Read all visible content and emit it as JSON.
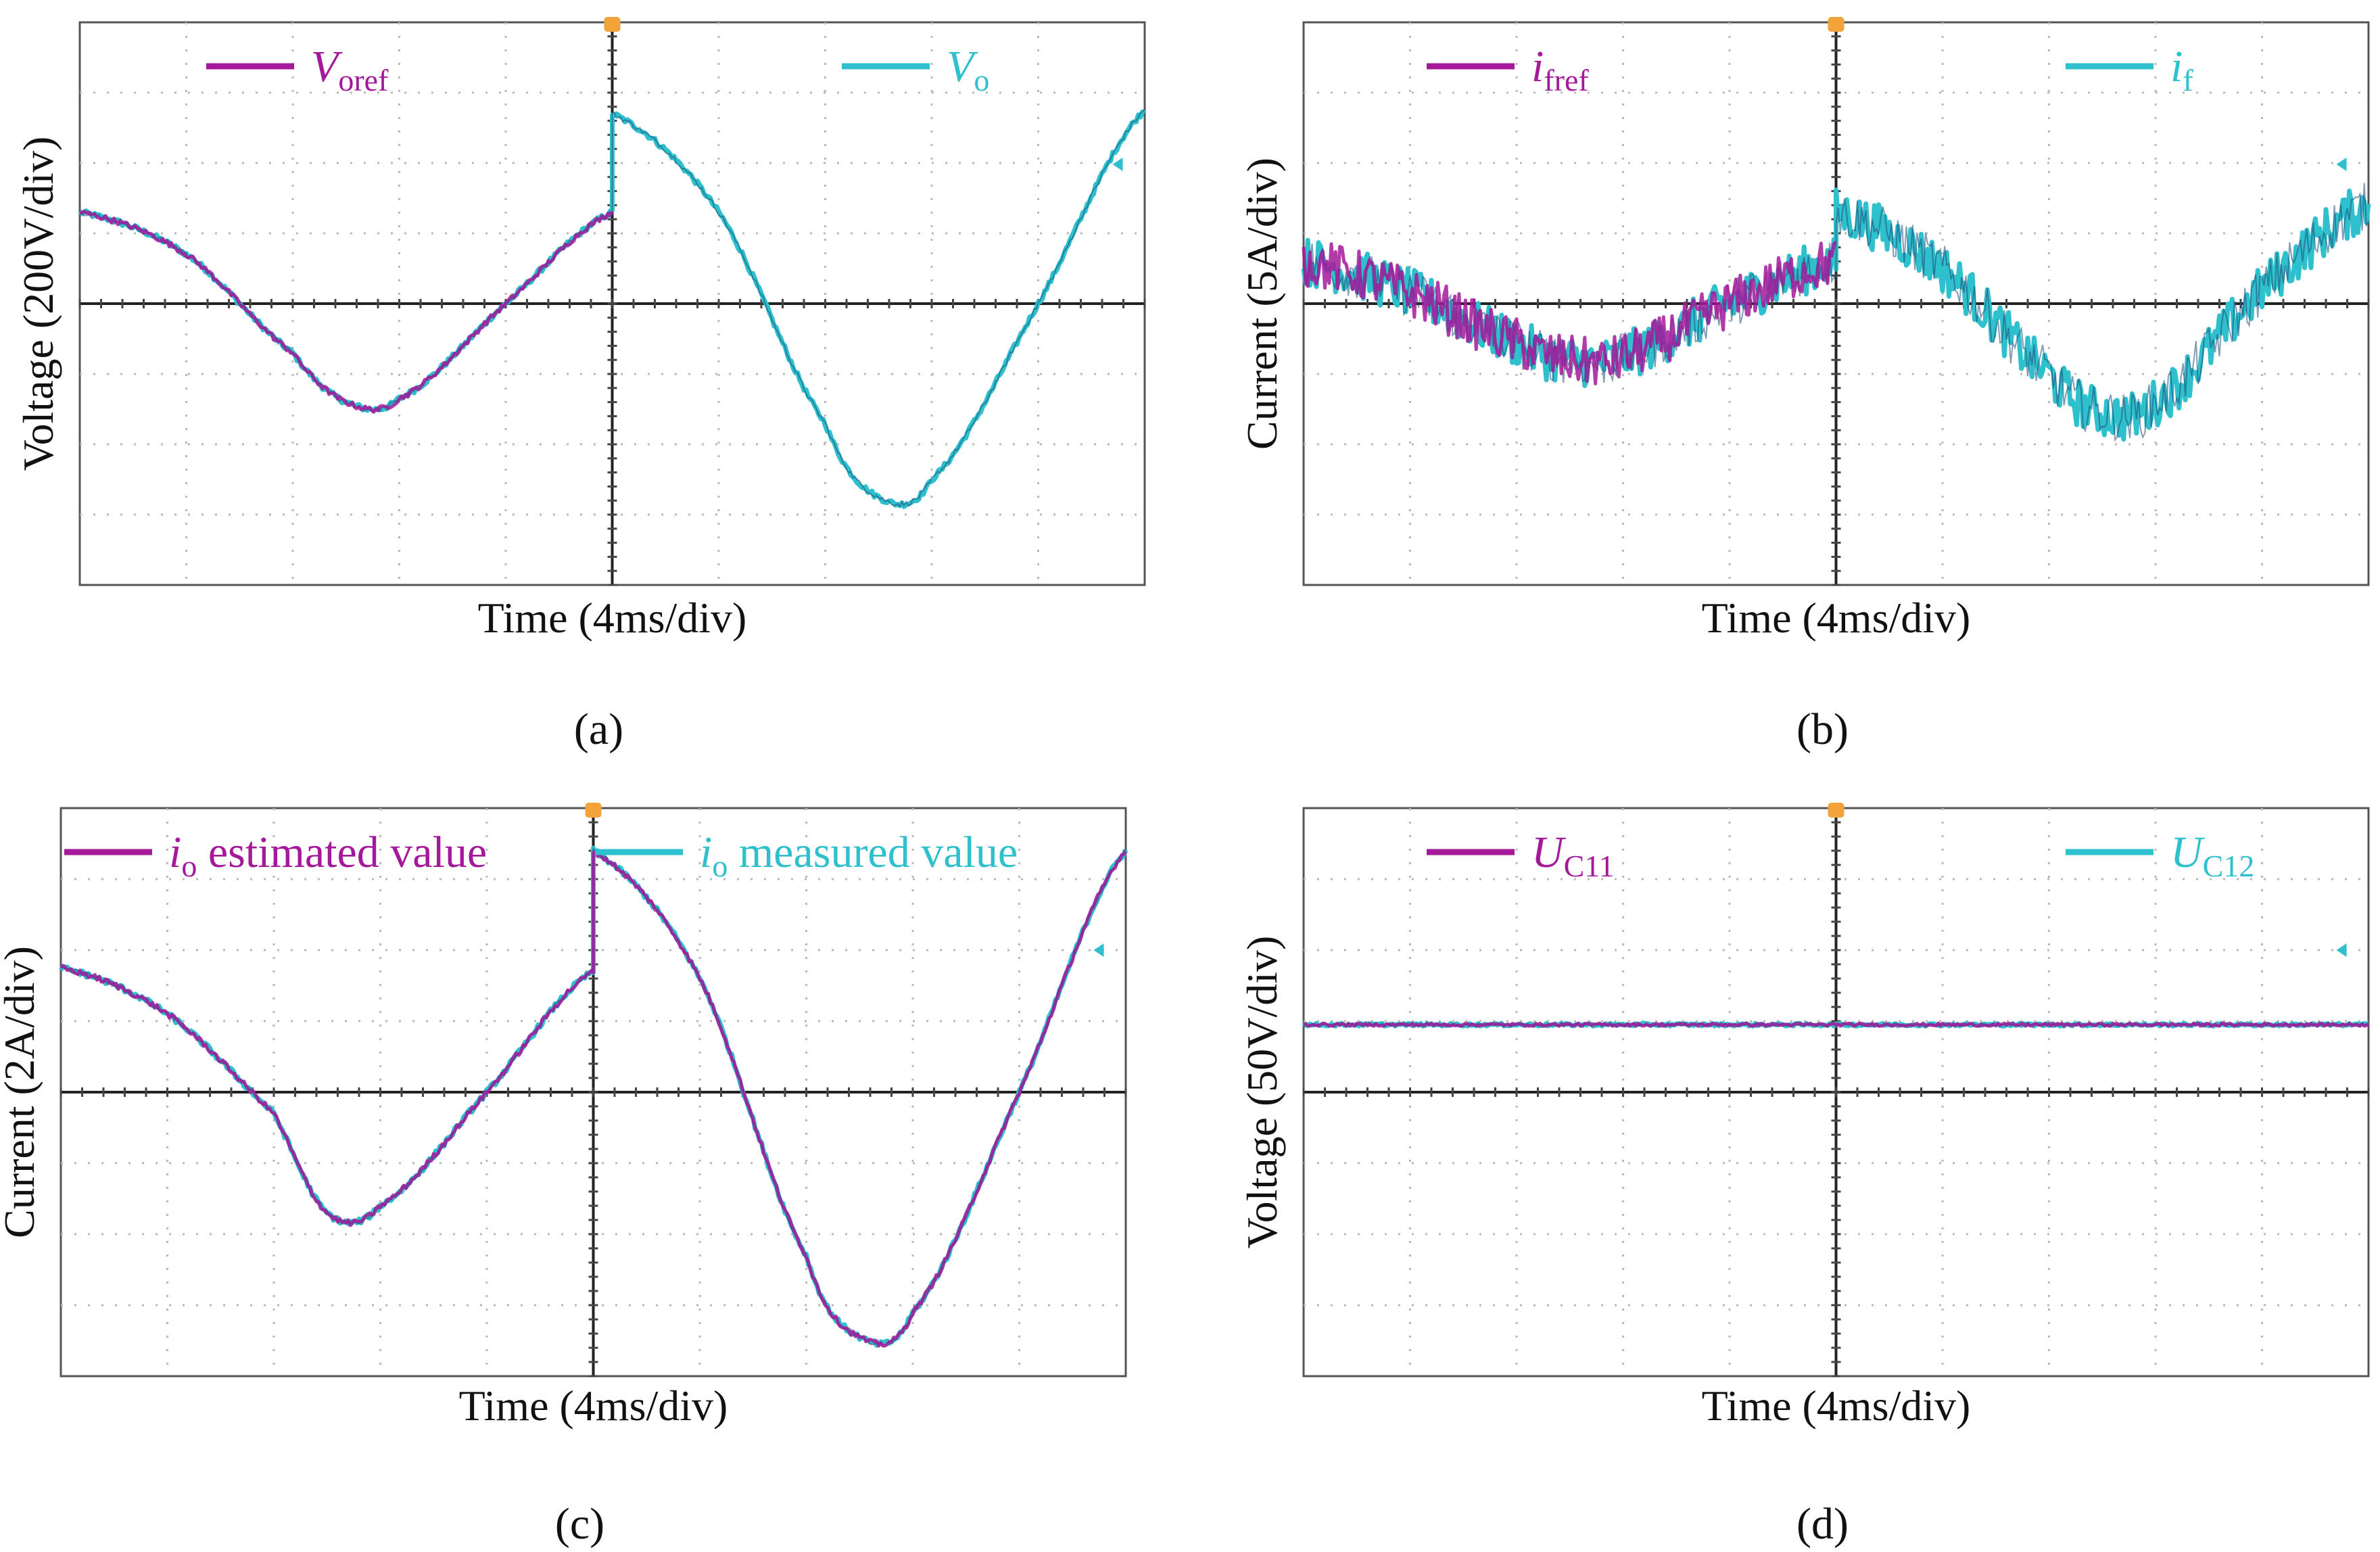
{
  "colors": {
    "reference": "#A3199A",
    "measured": "#2EC0CD",
    "dark_trace": "#1F4A78",
    "trigger": "#F2A33A"
  },
  "chart_data": [
    {
      "id": "a",
      "type": "line",
      "caption": "(a)",
      "xlabel": "Time (4ms/div)",
      "ylabel": "Voltage (200V/div)",
      "x_unit": "div",
      "y_unit": "div",
      "xlim": [
        0,
        10
      ],
      "ylim": [
        -4,
        4
      ],
      "trigger_x": 5,
      "noise": 0.04,
      "series": [
        {
          "name": "V",
          "name_sub": "oref",
          "color": "reference",
          "x": [
            0,
            1,
            2,
            2.5,
            3,
            4,
            5
          ],
          "y": [
            1.3,
            0.7,
            -0.7,
            -1.4,
            -1.35,
            0,
            1.3
          ]
        },
        {
          "name": "V",
          "name_sub": "o",
          "color": "measured",
          "x": [
            0,
            1,
            2,
            2.5,
            3,
            4,
            5,
            5,
            6,
            7,
            7.5,
            8,
            9,
            10
          ],
          "y": [
            1.3,
            0.7,
            -0.7,
            -1.4,
            -1.35,
            0,
            1.3,
            2.7,
            1.3,
            -1.7,
            -2.75,
            -2.5,
            0,
            2.75
          ]
        }
      ]
    },
    {
      "id": "b",
      "type": "line",
      "caption": "(b)",
      "xlabel": "Time (4ms/div)",
      "ylabel": "Current (5A/div)",
      "x_unit": "div",
      "y_unit": "div",
      "xlim": [
        0,
        10
      ],
      "ylim": [
        -4,
        4
      ],
      "trigger_x": 5,
      "noise": 0.35,
      "series": [
        {
          "name": "i",
          "name_sub": "fref",
          "color": "reference",
          "x": [
            0,
            1,
            2,
            2.5,
            3,
            4,
            5
          ],
          "y": [
            0.6,
            0.15,
            -0.55,
            -0.8,
            -0.75,
            0,
            0.6
          ]
        },
        {
          "name": "i",
          "name_sub": "f",
          "color": "measured",
          "x": [
            0,
            1,
            2,
            2.5,
            3,
            4,
            5,
            5,
            6,
            7,
            7.5,
            8,
            9,
            10
          ],
          "y": [
            0.6,
            0.15,
            -0.55,
            -0.8,
            -0.75,
            0,
            0.6,
            1.3,
            0.5,
            -1.0,
            -1.55,
            -1.4,
            0.2,
            1.4
          ]
        }
      ]
    },
    {
      "id": "c",
      "type": "line",
      "caption": "(c)",
      "xlabel": "Time (4ms/div)",
      "ylabel": "Current (2A/div)",
      "x_unit": "div",
      "y_unit": "div",
      "xlim": [
        0,
        10
      ],
      "ylim": [
        -4,
        4
      ],
      "trigger_x": 5,
      "noise": 0.04,
      "series": [
        {
          "name": "i",
          "name_sub": "o",
          "name_suffix": " estimated value",
          "color": "reference",
          "x": [
            0,
            1,
            2,
            2.5,
            3,
            4,
            5,
            5,
            6,
            7,
            7.5,
            8,
            9,
            10
          ],
          "y": [
            1.75,
            1.1,
            -0.3,
            -1.7,
            -1.6,
            0,
            1.7,
            3.4,
            1.6,
            -2.3,
            -3.45,
            -3.1,
            0,
            3.4
          ]
        },
        {
          "name": "i",
          "name_sub": "o",
          "name_suffix": " measured value",
          "color": "measured",
          "x": [
            0,
            1,
            2,
            2.5,
            3,
            4,
            5,
            5,
            6,
            7,
            7.5,
            8,
            9,
            10
          ],
          "y": [
            1.75,
            1.1,
            -0.3,
            -1.7,
            -1.6,
            0,
            1.7,
            3.4,
            1.6,
            -2.3,
            -3.45,
            -3.1,
            0,
            3.4
          ]
        }
      ]
    },
    {
      "id": "d",
      "type": "line",
      "caption": "(d)",
      "xlabel": "Time (4ms/div)",
      "ylabel": "Voltage (50V/div)",
      "x_unit": "div",
      "y_unit": "div",
      "xlim": [
        0,
        10
      ],
      "ylim": [
        -4,
        4
      ],
      "trigger_x": 5,
      "noise": 0.02,
      "series": [
        {
          "name": "U",
          "name_sub": "C11",
          "color": "reference",
          "x": [
            0,
            10
          ],
          "y": [
            0.95,
            0.95
          ]
        },
        {
          "name": "U",
          "name_sub": "C12",
          "color": "measured",
          "x": [
            0,
            10
          ],
          "y": [
            0.95,
            0.95
          ]
        }
      ]
    }
  ]
}
